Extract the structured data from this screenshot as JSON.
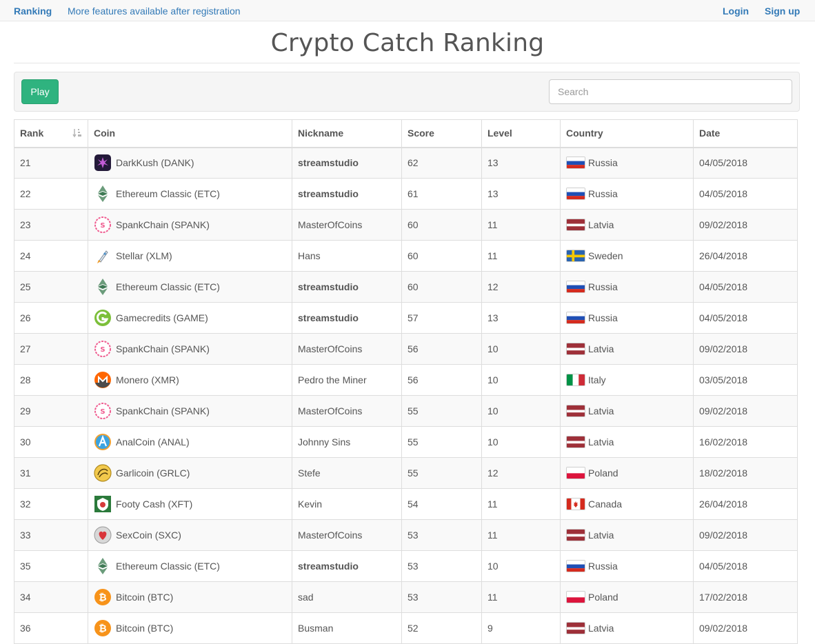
{
  "nav": {
    "brand": "Ranking",
    "more": "More features available after registration",
    "login": "Login",
    "signup": "Sign up"
  },
  "title": "Crypto Catch Ranking",
  "toolbar": {
    "play_label": "Play",
    "search_placeholder": "Search"
  },
  "table": {
    "headers": [
      "Rank",
      "Coin",
      "Nickname",
      "Score",
      "Level",
      "Country",
      "Date"
    ],
    "rows": [
      {
        "rank": "21",
        "coin": "DarkKush (DANK)",
        "coin_icon": "dank-icon",
        "nickname": "streamstudio",
        "nickname_bold": true,
        "score": "62",
        "level": "13",
        "country": "Russia",
        "flag": "ru",
        "date": "04/05/2018"
      },
      {
        "rank": "22",
        "coin": "Ethereum Classic (ETC)",
        "coin_icon": "etc-icon",
        "nickname": "streamstudio",
        "nickname_bold": true,
        "score": "61",
        "level": "13",
        "country": "Russia",
        "flag": "ru",
        "date": "04/05/2018"
      },
      {
        "rank": "23",
        "coin": "SpankChain (SPANK)",
        "coin_icon": "spank-icon",
        "nickname": "MasterOfCoins",
        "nickname_bold": false,
        "score": "60",
        "level": "11",
        "country": "Latvia",
        "flag": "lv",
        "date": "09/02/2018"
      },
      {
        "rank": "24",
        "coin": "Stellar (XLM)",
        "coin_icon": "xlm-icon",
        "nickname": "Hans",
        "nickname_bold": false,
        "score": "60",
        "level": "11",
        "country": "Sweden",
        "flag": "se",
        "date": "26/04/2018"
      },
      {
        "rank": "25",
        "coin": "Ethereum Classic (ETC)",
        "coin_icon": "etc-icon",
        "nickname": "streamstudio",
        "nickname_bold": true,
        "score": "60",
        "level": "12",
        "country": "Russia",
        "flag": "ru",
        "date": "04/05/2018"
      },
      {
        "rank": "26",
        "coin": "Gamecredits (GAME)",
        "coin_icon": "game-icon",
        "nickname": "streamstudio",
        "nickname_bold": true,
        "score": "57",
        "level": "13",
        "country": "Russia",
        "flag": "ru",
        "date": "04/05/2018"
      },
      {
        "rank": "27",
        "coin": "SpankChain (SPANK)",
        "coin_icon": "spank-icon",
        "nickname": "MasterOfCoins",
        "nickname_bold": false,
        "score": "56",
        "level": "10",
        "country": "Latvia",
        "flag": "lv",
        "date": "09/02/2018"
      },
      {
        "rank": "28",
        "coin": "Monero (XMR)",
        "coin_icon": "xmr-icon",
        "nickname": "Pedro the Miner",
        "nickname_bold": false,
        "score": "56",
        "level": "10",
        "country": "Italy",
        "flag": "it",
        "date": "03/05/2018"
      },
      {
        "rank": "29",
        "coin": "SpankChain (SPANK)",
        "coin_icon": "spank-icon",
        "nickname": "MasterOfCoins",
        "nickname_bold": false,
        "score": "55",
        "level": "10",
        "country": "Latvia",
        "flag": "lv",
        "date": "09/02/2018"
      },
      {
        "rank": "30",
        "coin": "AnalCoin (ANAL)",
        "coin_icon": "anal-icon",
        "nickname": "Johnny Sins",
        "nickname_bold": false,
        "score": "55",
        "level": "10",
        "country": "Latvia",
        "flag": "lv",
        "date": "16/02/2018"
      },
      {
        "rank": "31",
        "coin": "Garlicoin (GRLC)",
        "coin_icon": "grlc-icon",
        "nickname": "Stefe",
        "nickname_bold": false,
        "score": "55",
        "level": "12",
        "country": "Poland",
        "flag": "pl",
        "date": "18/02/2018"
      },
      {
        "rank": "32",
        "coin": "Footy Cash (XFT)",
        "coin_icon": "xft-icon",
        "nickname": "Kevin",
        "nickname_bold": false,
        "score": "54",
        "level": "11",
        "country": "Canada",
        "flag": "ca",
        "date": "26/04/2018"
      },
      {
        "rank": "33",
        "coin": "SexCoin (SXC)",
        "coin_icon": "sxc-icon",
        "nickname": "MasterOfCoins",
        "nickname_bold": false,
        "score": "53",
        "level": "11",
        "country": "Latvia",
        "flag": "lv",
        "date": "09/02/2018"
      },
      {
        "rank": "35",
        "coin": "Ethereum Classic (ETC)",
        "coin_icon": "etc-icon",
        "nickname": "streamstudio",
        "nickname_bold": true,
        "score": "53",
        "level": "10",
        "country": "Russia",
        "flag": "ru",
        "date": "04/05/2018"
      },
      {
        "rank": "34",
        "coin": "Bitcoin (BTC)",
        "coin_icon": "btc-icon",
        "nickname": "sad",
        "nickname_bold": false,
        "score": "53",
        "level": "11",
        "country": "Poland",
        "flag": "pl",
        "date": "17/02/2018"
      },
      {
        "rank": "36",
        "coin": "Bitcoin (BTC)",
        "coin_icon": "btc-icon",
        "nickname": "Busman",
        "nickname_bold": false,
        "score": "52",
        "level": "9",
        "country": "Latvia",
        "flag": "lv",
        "date": "09/02/2018"
      }
    ]
  },
  "colors": {
    "link": "#337ab7",
    "play_button": "#2fb37f",
    "text": "#555555"
  }
}
